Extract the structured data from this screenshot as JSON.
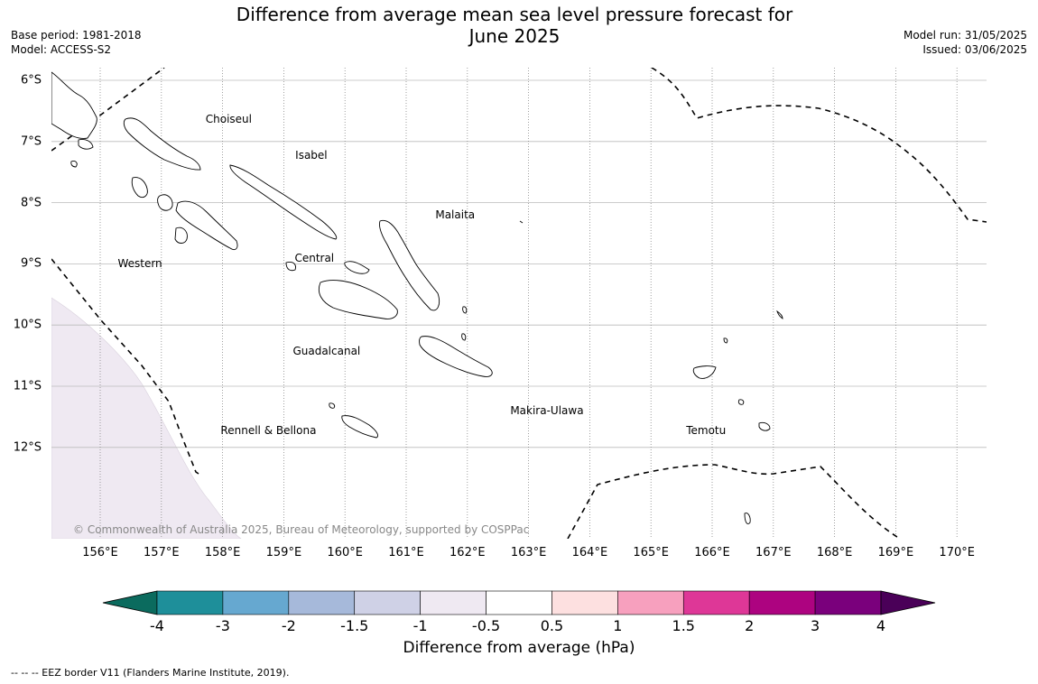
{
  "title_line1": "Difference from average mean sea level pressure forecast for",
  "title_line2": "June 2025",
  "base_period": "Base period: 1981-2018",
  "model": "Model: ACCESS-S2",
  "model_run": "Model run: 31/05/2025",
  "issued": "Issued: 03/06/2025",
  "copyright": "© Commonwealth of Australia 2025, Bureau of Meteorology, supported by COSPPac",
  "places": [
    {
      "name": "Choiseul",
      "lon": 158.1,
      "lat": -6.63
    },
    {
      "name": "Isabel",
      "lon": 159.45,
      "lat": -7.22
    },
    {
      "name": "Malaita",
      "lon": 161.8,
      "lat": -8.2
    },
    {
      "name": "Western",
      "lon": 156.65,
      "lat": -9.0
    },
    {
      "name": "Central",
      "lon": 159.5,
      "lat": -8.9
    },
    {
      "name": "Guadalcanal",
      "lon": 159.7,
      "lat": -10.42
    },
    {
      "name": "Makira-Ulawa",
      "lon": 163.3,
      "lat": -11.4
    },
    {
      "name": "Rennell & Bellona",
      "lon": 158.75,
      "lat": -11.72
    },
    {
      "name": "Temotu",
      "lon": 165.9,
      "lat": -11.72
    }
  ],
  "lat_ticks": [
    {
      "label": "6°S",
      "value": -6
    },
    {
      "label": "7°S",
      "value": -7
    },
    {
      "label": "8°S",
      "value": -8
    },
    {
      "label": "9°S",
      "value": -9
    },
    {
      "label": "10°S",
      "value": -10
    },
    {
      "label": "11°S",
      "value": -11
    },
    {
      "label": "12°S",
      "value": -12
    }
  ],
  "lon_ticks": [
    {
      "label": "156°E",
      "value": 156
    },
    {
      "label": "157°E",
      "value": 157
    },
    {
      "label": "158°E",
      "value": 158
    },
    {
      "label": "159°E",
      "value": 159
    },
    {
      "label": "160°E",
      "value": 160
    },
    {
      "label": "161°E",
      "value": 161
    },
    {
      "label": "162°E",
      "value": 162
    },
    {
      "label": "163°E",
      "value": 163
    },
    {
      "label": "164°E",
      "value": 164
    },
    {
      "label": "165°E",
      "value": 165
    },
    {
      "label": "166°E",
      "value": 166
    },
    {
      "label": "167°E",
      "value": 167
    },
    {
      "label": "168°E",
      "value": 168
    },
    {
      "label": "169°E",
      "value": 169
    },
    {
      "label": "170°E",
      "value": 170
    }
  ],
  "map_extent": {
    "lon": [
      155.2,
      170.5
    ],
    "lat": [
      -13.5,
      -5.8
    ]
  },
  "colorbar": {
    "label": "Difference from average (hPa)",
    "extend_low_color": "#0b6b5e",
    "extend_high_color": "#4a0058",
    "colors": [
      "#1e8f9a",
      "#66a8d0",
      "#a6b9da",
      "#cfd1e6",
      "#efe9f2",
      "#ffffff",
      "#fde0e0",
      "#f7a0be",
      "#de3797",
      "#ad0380",
      "#7a007c"
    ],
    "ticks": [
      "-4",
      "-3",
      "-2",
      "-1.5",
      "-1",
      "-0.5",
      "0.5",
      "1",
      "1.5",
      "2",
      "3",
      "4"
    ]
  },
  "anomaly_shading_color": "#efe9f2",
  "footnote": "--  --  -- EEZ border V11 (Flanders Marine Institute, 2019)."
}
